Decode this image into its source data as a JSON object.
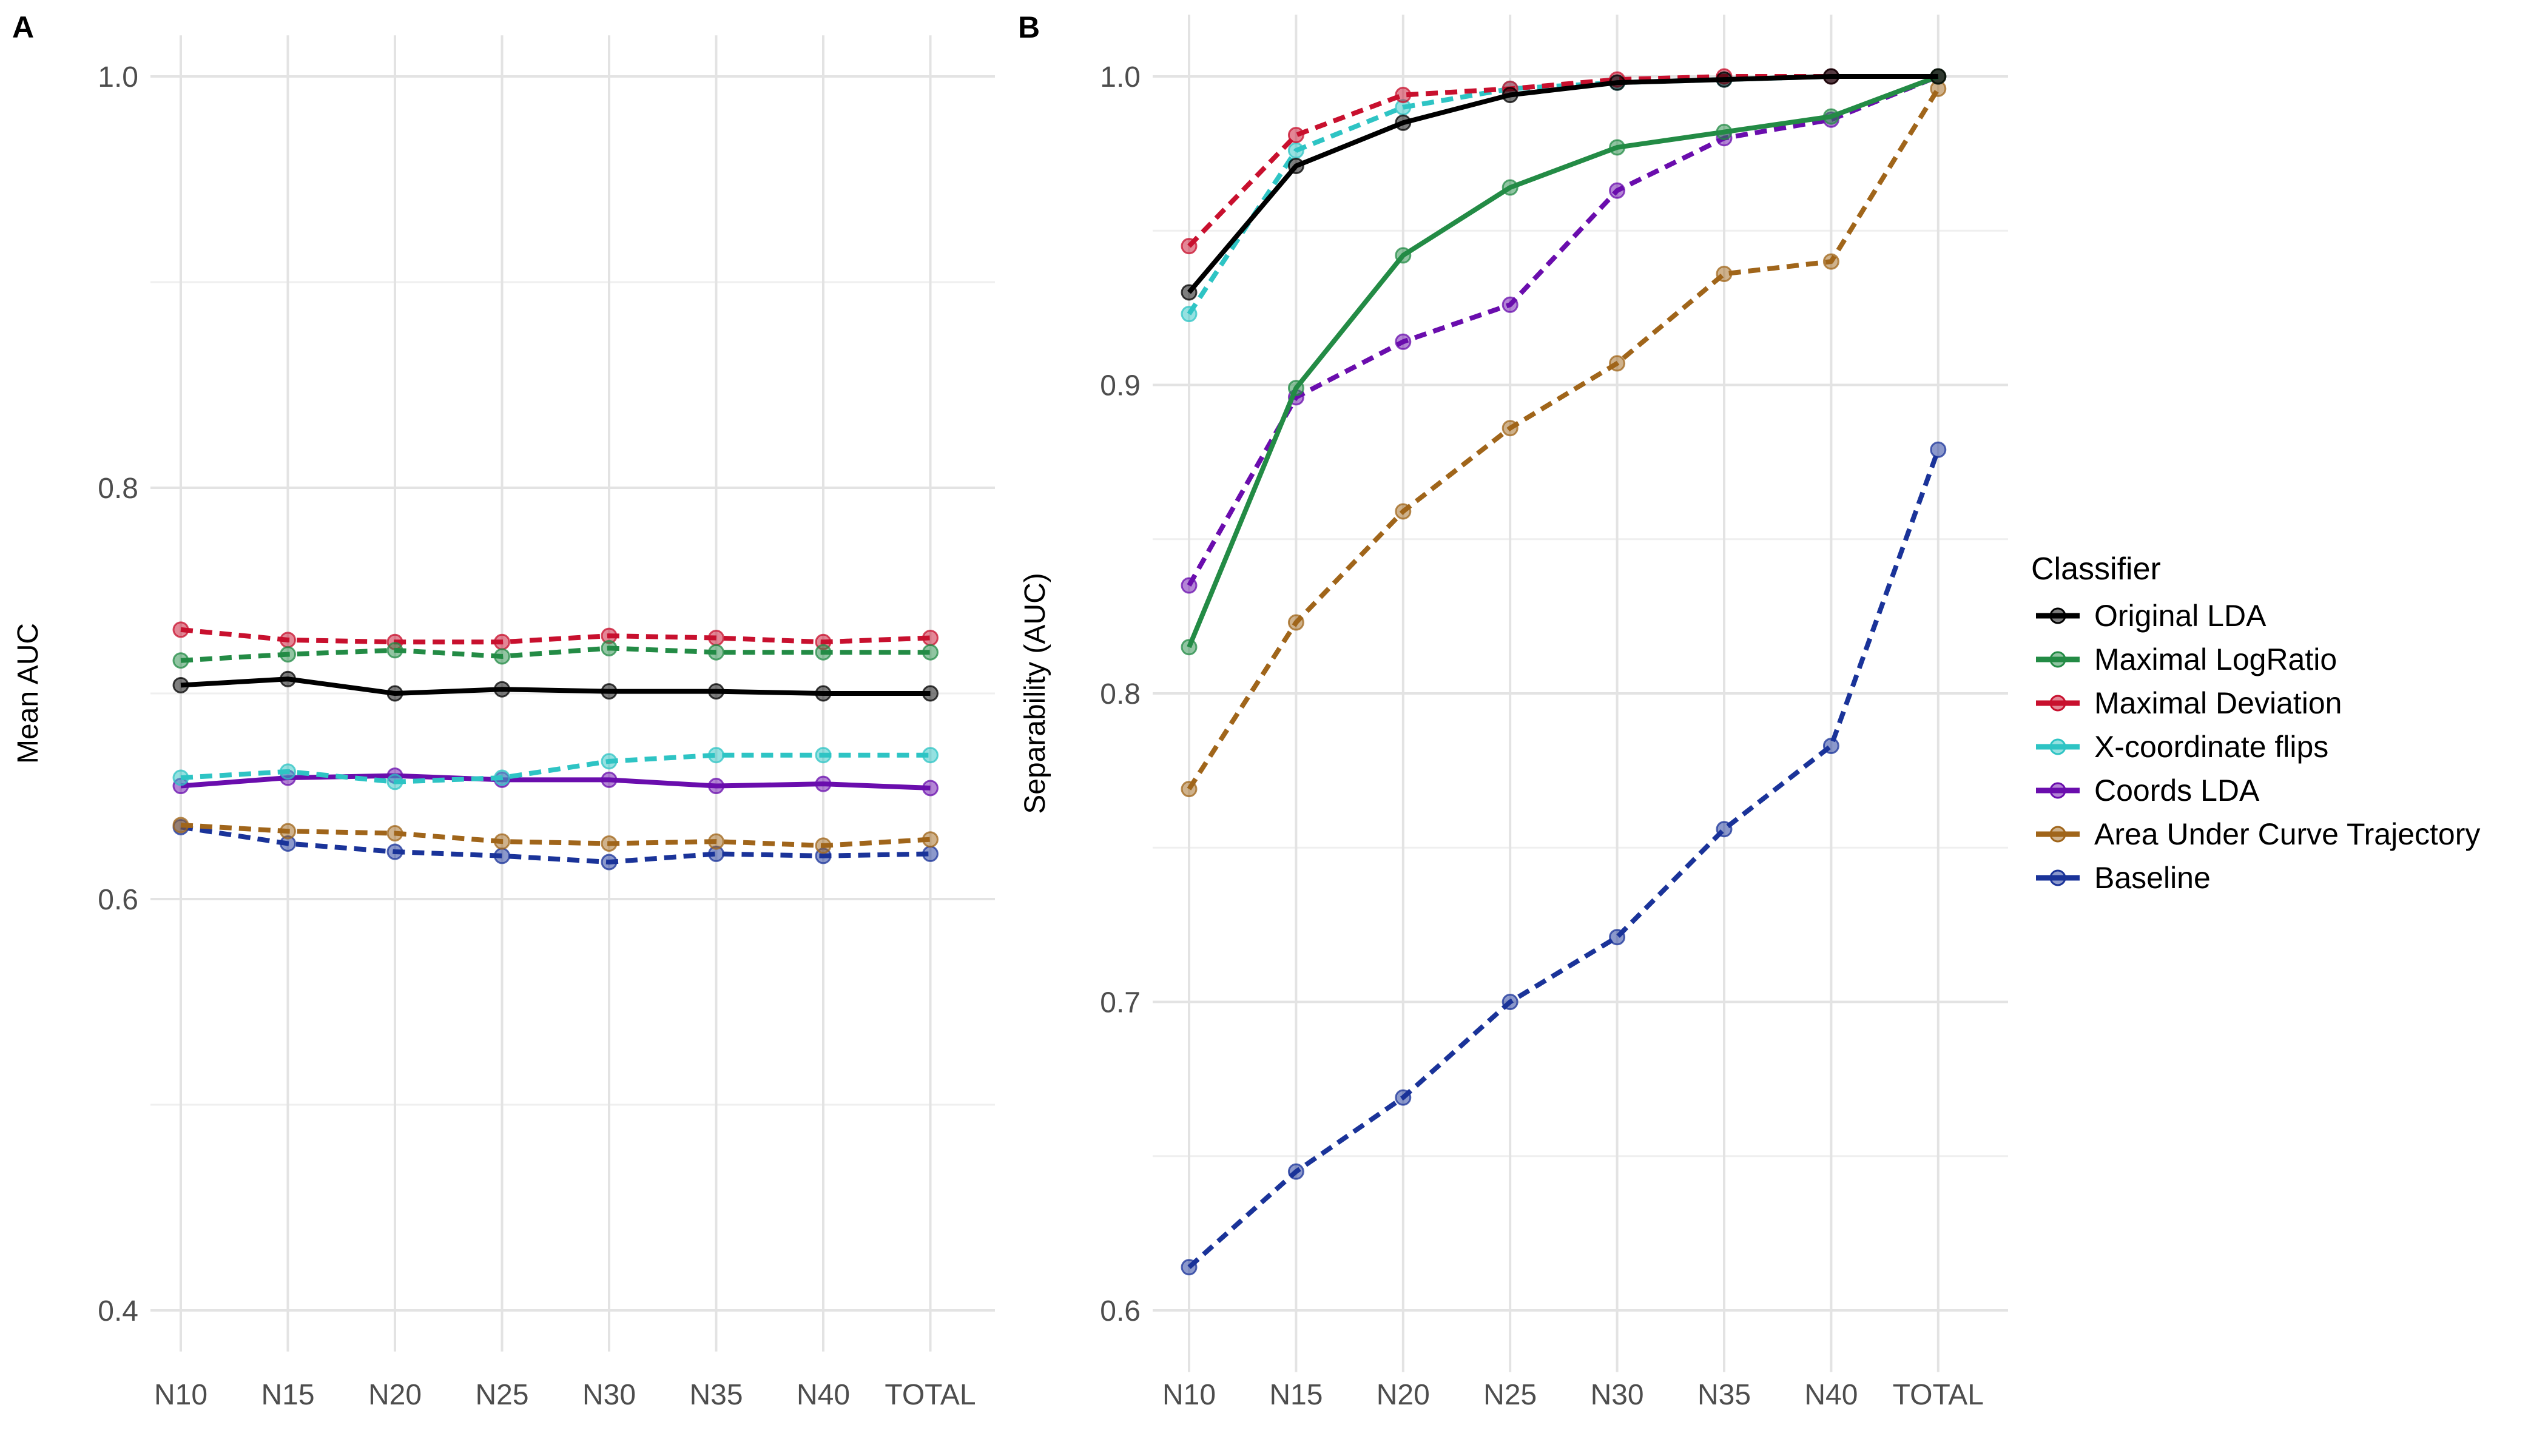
{
  "chart_data": [
    {
      "type": "line",
      "panel_label": "A",
      "title": "",
      "xlabel": "",
      "ylabel": "Mean AUC",
      "categories": [
        "N10",
        "N15",
        "N20",
        "N25",
        "N30",
        "N35",
        "N40",
        "TOTAL"
      ],
      "ylim": [
        0.38,
        1.02
      ],
      "yticks": [
        0.4,
        0.6,
        0.8,
        1.0
      ],
      "ytick_labels": [
        "0.4",
        "0.6",
        "0.8",
        "1.0"
      ],
      "grid": true,
      "series": [
        {
          "name": "Original LDA",
          "color": "#000000",
          "dash": "solid",
          "values": [
            0.704,
            0.707,
            0.7,
            0.702,
            0.701,
            0.701,
            0.7,
            0.7
          ]
        },
        {
          "name": "Maximal LogRatio",
          "color": "#238b45",
          "dash": "dashed",
          "values": [
            0.716,
            0.719,
            0.721,
            0.718,
            0.722,
            0.72,
            0.72,
            0.72
          ]
        },
        {
          "name": "Maximal Deviation",
          "color": "#c8102e",
          "dash": "dashed",
          "values": [
            0.731,
            0.726,
            0.725,
            0.725,
            0.728,
            0.727,
            0.725,
            0.727
          ]
        },
        {
          "name": "X-coordinate flips",
          "color": "#2ec4c4",
          "dash": "dashed",
          "values": [
            0.659,
            0.662,
            0.657,
            0.659,
            0.667,
            0.67,
            0.67,
            0.67
          ]
        },
        {
          "name": "Coords LDA",
          "color": "#6a0dad",
          "dash": "solid",
          "values": [
            0.655,
            0.659,
            0.66,
            0.658,
            0.658,
            0.655,
            0.656,
            0.654
          ]
        },
        {
          "name": "Area Under Curve Trajectory",
          "color": "#a0651a",
          "dash": "dashed",
          "values": [
            0.636,
            0.633,
            0.632,
            0.628,
            0.627,
            0.628,
            0.626,
            0.629
          ]
        },
        {
          "name": "Baseline",
          "color": "#1a3399",
          "dash": "dashed",
          "values": [
            0.635,
            0.627,
            0.623,
            0.621,
            0.618,
            0.622,
            0.621,
            0.622
          ]
        }
      ]
    },
    {
      "type": "line",
      "panel_label": "B",
      "title": "",
      "xlabel": "",
      "ylabel": "Separability (AUC)",
      "categories": [
        "N10",
        "N15",
        "N20",
        "N25",
        "N30",
        "N35",
        "N40",
        "TOTAL"
      ],
      "ylim": [
        0.58,
        1.02
      ],
      "yticks": [
        0.6,
        0.7,
        0.8,
        0.9,
        1.0
      ],
      "ytick_labels": [
        "0.6",
        "0.7",
        "0.8",
        "0.9",
        "1.0"
      ],
      "grid": true,
      "legend_title": "Classifier",
      "legend_position": "right",
      "series": [
        {
          "name": "Original LDA",
          "color": "#000000",
          "dash": "solid",
          "values": [
            0.93,
            0.971,
            0.985,
            0.994,
            0.998,
            0.999,
            1.0,
            1.0
          ]
        },
        {
          "name": "Maximal LogRatio",
          "color": "#238b45",
          "dash": "solid",
          "values": [
            0.815,
            0.899,
            0.942,
            0.964,
            0.977,
            0.982,
            0.987,
            1.0
          ]
        },
        {
          "name": "Maximal Deviation",
          "color": "#c8102e",
          "dash": "dashed",
          "values": [
            0.945,
            0.981,
            0.994,
            0.996,
            0.999,
            1.0,
            1.0,
            1.0
          ]
        },
        {
          "name": "X-coordinate flips",
          "color": "#2ec4c4",
          "dash": "dashed",
          "values": [
            0.923,
            0.976,
            0.99,
            0.996,
            0.998,
            0.999,
            1.0,
            1.0
          ]
        },
        {
          "name": "Coords LDA",
          "color": "#6a0dad",
          "dash": "dashed",
          "values": [
            0.835,
            0.896,
            0.914,
            0.926,
            0.963,
            0.98,
            0.986,
            1.0
          ]
        },
        {
          "name": "Area Under Curve Trajectory",
          "color": "#a0651a",
          "dash": "dashed",
          "values": [
            0.769,
            0.823,
            0.859,
            0.886,
            0.907,
            0.936,
            0.94,
            0.996
          ]
        },
        {
          "name": "Baseline",
          "color": "#1a3399",
          "dash": "dashed",
          "values": [
            0.614,
            0.645,
            0.669,
            0.7,
            0.721,
            0.756,
            0.783,
            0.879
          ]
        }
      ]
    }
  ]
}
